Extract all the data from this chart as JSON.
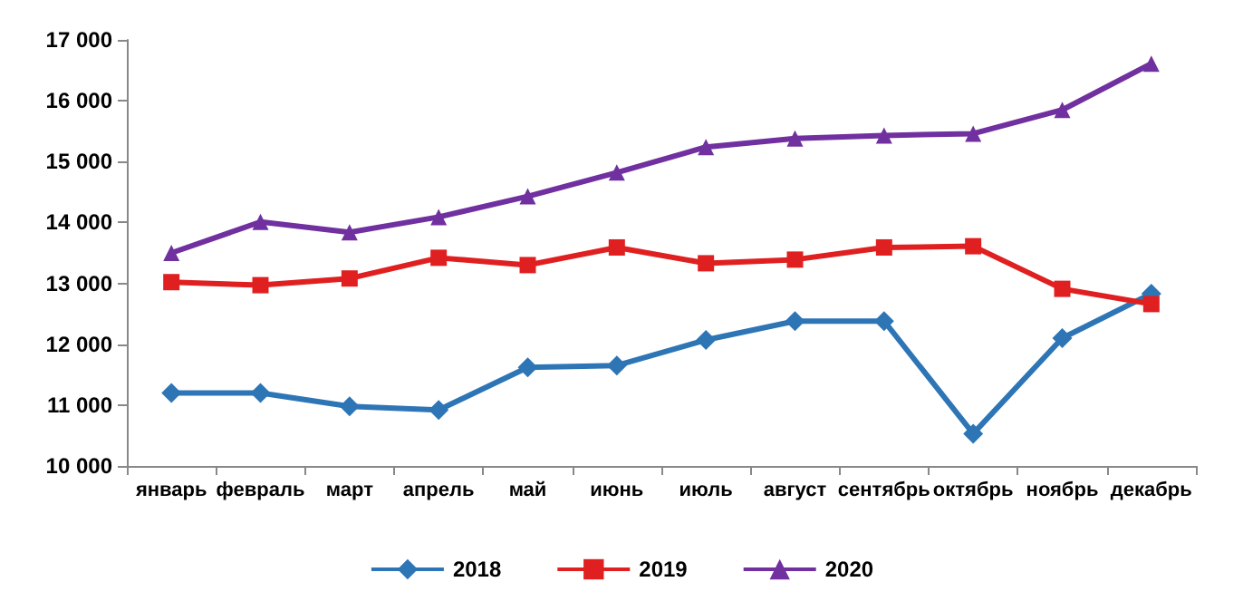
{
  "chart_data": {
    "type": "line",
    "categories": [
      "январь",
      "февраль",
      "март",
      "апрель",
      "май",
      "июнь",
      "июль",
      "август",
      "сентябрь",
      "октябрь",
      "ноябрь",
      "декабрь"
    ],
    "series": [
      {
        "name": "2018",
        "color": "#2e75b6",
        "marker": "diamond",
        "values": [
          11200,
          11200,
          10980,
          10920,
          11620,
          11650,
          12070,
          12380,
          12380,
          10530,
          12100,
          12830
        ]
      },
      {
        "name": "2019",
        "color": "#e02020",
        "marker": "square",
        "values": [
          13020,
          12970,
          13080,
          13420,
          13300,
          13590,
          13330,
          13390,
          13590,
          13610,
          12910,
          12660
        ]
      },
      {
        "name": "2020",
        "color": "#7030a0",
        "marker": "triangle",
        "values": [
          13500,
          14010,
          13840,
          14090,
          14430,
          14820,
          15240,
          15380,
          15430,
          15460,
          15850,
          16610
        ]
      }
    ],
    "ylim": [
      10000,
      17000
    ],
    "yticks": [
      {
        "value": 10000,
        "label": "10 000"
      },
      {
        "value": 11000,
        "label": "11 000"
      },
      {
        "value": 12000,
        "label": "12 000"
      },
      {
        "value": 13000,
        "label": "13 000"
      },
      {
        "value": 14000,
        "label": "14 000"
      },
      {
        "value": 15000,
        "label": "15 000"
      },
      {
        "value": 16000,
        "label": "16 000"
      },
      {
        "value": 17000,
        "label": "17 000"
      }
    ],
    "legend": "bottom",
    "grid": false,
    "line_style": "solid"
  }
}
